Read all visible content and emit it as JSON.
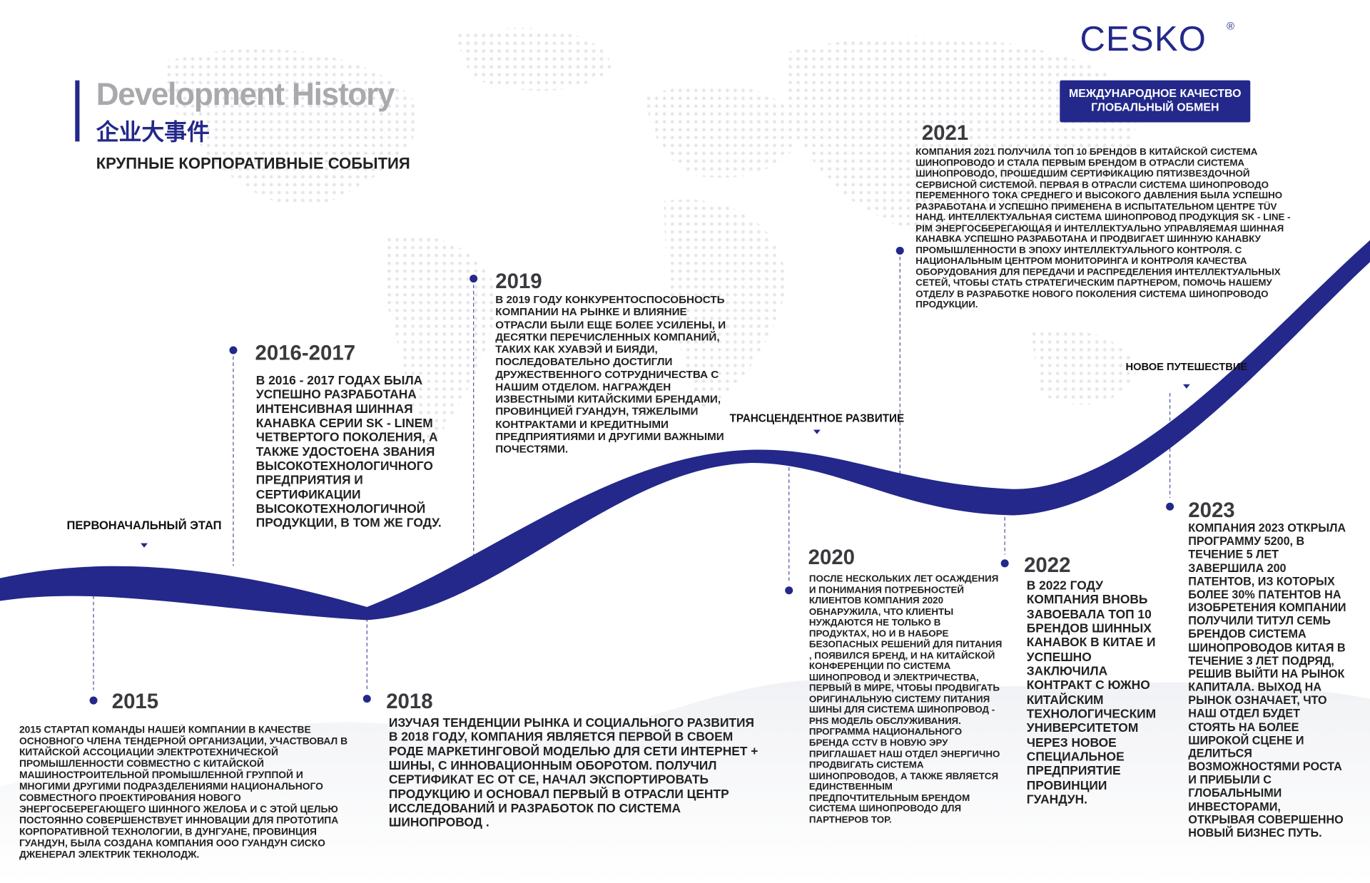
{
  "header": {
    "brand": "CESKO",
    "brand_mark": "®",
    "title": "Development History",
    "title_cn": "企业大事件",
    "subtitle": "КРУПНЫЕ КОРПОРАТИВНЫЕ СОБЫТИЯ",
    "badge": [
      "МЕЖДУНАРОДНОЕ КАЧЕСТВО",
      "ГЛОБАЛЬНЫЙ ОБМЕН"
    ]
  },
  "stages": [
    "ПЕРВОНАЧАЛЬНЫЙ ЭТАП",
    "ТРАНСЦЕНДЕНТНОЕ РАЗВИТИЕ",
    "НОВОЕ ПУТЕШЕСТВИЕ"
  ],
  "events": [
    {
      "year": "2015",
      "text": "2015 СТАРТАП КОМАНДЫ НАШЕЙ КОМПАНИИ В КАЧЕСТВЕ ОСНОВНОГО ЧЛЕНА ТЕНДЕРНОЙ ОРГАНИЗАЦИИ, УЧАСТВОВАЛ В КИТАЙСКОЙ АССОЦИАЦИИ ЭЛЕКТРОТЕХНИЧЕСКОЙ ПРОМЫШЛЕННОСТИ СОВМЕСТНО С КИТАЙСКОЙ МАШИНОСТРОИТЕЛЬНОЙ ПРОМЫШЛЕННОЙ ГРУППОЙ И МНОГИМИ ДРУГИМИ ПОДРАЗДЕЛЕНИЯМИ НАЦИОНАЛЬНОГО СОВМЕСТНОГО ПРОЕКТИРОВАНИЯ НОВОГО ЭНЕРГОСБЕРЕГАЮЩЕГО ШИННОГО ЖЕЛОБА И С ЭТОЙ ЦЕЛЬЮ ПОСТОЯННО СОВЕРШЕНСТВУЕТ ИННОВАЦИИ ДЛЯ ПРОТОТИПА КОРПОРАТИВНОЙ ТЕХНОЛОГИИ, В ДУНГУАНЕ, ПРОВИНЦИЯ ГУАНДУН, БЫЛА СОЗДАНА КОМПАНИЯ ООО ГУАНДУН СИСКО ДЖЕНЕРАЛ ЭЛЕКТРИК ТЕКНОЛОДЖ."
    },
    {
      "year": "2016-2017",
      "text": "В 2016 - 2017 ГОДАХ БЫЛА УСПЕШНО РАЗРАБОТАНА ИНТЕНСИВНАЯ ШИННАЯ КАНАВКА СЕРИИ SK - LINEM ЧЕТВЕРТОГО ПОКОЛЕНИЯ, А ТАКЖЕ УДОСТОЕНА ЗВАНИЯ ВЫСОКОТЕХНОЛОГИЧНОГО ПРЕДПРИЯТИЯ И СЕРТИФИКАЦИИ ВЫСОКОТЕХНОЛОГИЧНОЙ ПРОДУКЦИИ, В ТОМ ЖЕ ГОДУ."
    },
    {
      "year": "2018",
      "text": "ИЗУЧАЯ ТЕНДЕНЦИИ РЫНКА И СОЦИАЛЬНОГО РАЗВИТИЯ В 2018 ГОДУ, КОМПАНИЯ ЯВЛЯЕТСЯ ПЕРВОЙ В СВОЕМ РОДЕ МАРКЕТИНГОВОЙ МОДЕЛЬЮ ДЛЯ СЕТИ ИНТЕРНЕТ + ШИНЫ, С ИННОВАЦИОННЫМ ОБОРОТОМ. ПОЛУЧИЛ СЕРТИФИКАТ ЕС ОТ CE, НАЧАЛ ЭКСПОРТИРОВАТЬ ПРОДУКЦИЮ И ОСНОВАЛ ПЕРВЫЙ В ОТРАСЛИ ЦЕНТР ИССЛЕДОВАНИЙ И РАЗРАБОТОК ПО СИСТЕМА ШИНОПРОВОД ."
    },
    {
      "year": "2019",
      "text": "В 2019 ГОДУ КОНКУРЕНТОСПОСОБНОСТЬ КОМПАНИИ НА РЫНКЕ И ВЛИЯНИЕ ОТРАСЛИ БЫЛИ ЕЩЕ БОЛЕЕ УСИЛЕНЫ, И ДЕСЯТКИ ПЕРЕЧИСЛЕННЫХ КОМПАНИЙ, ТАКИХ КАК ХУАВЭЙ И БИЯДИ, ПОСЛЕДОВАТЕЛЬНО ДОСТИГЛИ ДРУЖЕСТВЕННОГО СОТРУДНИЧЕСТВА С НАШИМ ОТДЕЛОМ. НАГРАЖДЕН ИЗВЕСТНЫМИ КИТАЙСКИМИ БРЕНДАМИ, ПРОВИНЦИЕЙ ГУАНДУН, ТЯЖЕЛЫМИ КОНТРАКТАМИ И КРЕДИТНЫМИ ПРЕДПРИЯТИЯМИ И ДРУГИМИ ВАЖНЫМИ ПОЧЕСТЯМИ."
    },
    {
      "year": "2020",
      "text": "ПОСЛЕ НЕСКОЛЬКИХ ЛЕТ ОСАЖДЕНИЯ И ПОНИМАНИЯ ПОТРЕБНОСТЕЙ КЛИЕНТОВ КОМПАНИЯ 2020 ОБНАРУЖИЛА, ЧТО КЛИЕНТЫ НУЖДАЮТСЯ НЕ ТОЛЬКО В ПРОДУКТАХ, НО И В НАБОРЕ БЕЗОПАСНЫХ РЕШЕНИЙ ДЛЯ ПИТАНИЯ , ПОЯВИЛСЯ БРЕНД, И НА КИТАЙСКОЙ КОНФЕРЕНЦИИ ПО СИСТЕМА ШИНОПРОВОД И ЭЛЕКТРИЧЕСТВА, ПЕРВЫЙ В МИРЕ, ЧТОБЫ ПРОДВИГАТЬ ОРИГИНАЛЬНУЮ СИСТЕМУ ПИТАНИЯ ШИНЫ ДЛЯ СИСТЕМА ШИНОПРОВОД - PHS МОДЕЛЬ ОБСЛУЖИВАНИЯ. ПРОГРАММА НАЦИОНАЛЬНОГО БРЕНДА CCTV В НОВУЮ ЭРУ ПРИГЛАШАЕТ НАШ ОТДЕЛ ЭНЕРГИЧНО ПРОДВИГАТЬ СИСТЕМА ШИНОПРОВОДОВ, А ТАКЖЕ ЯВЛЯЕТСЯ ЕДИНСТВЕННЫМ ПРЕДПОЧТИТЕЛЬНЫМ БРЕНДОМ СИСТЕМА ШИНОПРОВОДО ДЛЯ ПАРТНЕРОВ ТОР."
    },
    {
      "year": "2021",
      "text": "КОМПАНИЯ 2021 ПОЛУЧИЛА ТОП 10 БРЕНДОВ В КИТАЙСКОЙ СИСТЕМА ШИНОПРОВОДО И СТАЛА ПЕРВЫМ БРЕНДОМ В ОТРАСЛИ СИСТЕМА ШИНОПРОВОДО, ПРОШЕДШИМ СЕРТИФИКАЦИЮ ПЯТИЗВЕЗДОЧНОЙ СЕРВИСНОЙ СИСТЕМОЙ. ПЕРВАЯ В ОТРАСЛИ СИСТЕМА ШИНОПРОВОДО ПЕРЕМЕННОГО ТОКА СРЕДНЕГО И ВЫСОКОГО ДАВЛЕНИЯ БЫЛА УСПЕШНО РАЗРАБОТАНА И УСПЕШНО ПРИМЕНЕНА В ИСПЫТАТЕЛЬНОМ ЦЕНТРЕ TÜV НАНД. ИНТЕЛЛЕКТУАЛЬНАЯ СИСТЕМА ШИНОПРОВОД ПРОДУКЦИЯ SK - LINE - PIM ЭНЕРГОСБЕРЕГАЮЩАЯ И ИНТЕЛЛЕКТУАЛЬНО УПРАВЛЯЕМАЯ ШИННАЯ КАНАВКА УСПЕШНО РАЗРАБОТАНА И ПРОДВИГАЕТ ШИННУЮ КАНАВКУ ПРОМЫШЛЕННОСТИ В ЭПОХУ ИНТЕЛЛЕКТУАЛЬНОГО КОНТРОЛЯ. С НАЦИОНАЛЬНЫМ ЦЕНТРОМ МОНИТОРИНГА И КОНТРОЛЯ КАЧЕСТВА ОБОРУДОВАНИЯ ДЛЯ ПЕРЕДАЧИ И РАСПРЕДЕЛЕНИЯ ИНТЕЛЛЕКТУАЛЬНЫХ СЕТЕЙ, ЧТОБЫ СТАТЬ СТРАТЕГИЧЕСКИМ ПАРТНЕРОМ, ПОМОЧЬ НАШЕМУ ОТДЕЛУ В РАЗРАБОТКЕ НОВОГО ПОКОЛЕНИЯ СИСТЕМА ШИНОПРОВОДО ПРОДУКЦИИ."
    },
    {
      "year": "2022",
      "text": "В 2022 ГОДУ КОМПАНИЯ ВНОВЬ ЗАВОЕВАЛА ТОП 10 БРЕНДОВ ШИННЫХ КАНАВОК В КИТАЕ И УСПЕШНО ЗАКЛЮЧИЛА КОНТРАКТ С ЮЖНО КИТАЙСКИМ ТЕХНОЛОГИЧЕСКИМ УНИВЕРСИТЕТОМ ЧЕРЕЗ НОВОЕ СПЕЦИАЛЬНОЕ ПРЕДПРИЯТИЕ ПРОВИНЦИИ ГУАНДУН."
    },
    {
      "year": "2023",
      "text": "КОМПАНИЯ 2023 ОТКРЫЛА ПРОГРАММУ 5200, В ТЕЧЕНИЕ 5 ЛЕТ ЗАВЕРШИЛА 200 ПАТЕНТОВ, ИЗ КОТОРЫХ БОЛЕЕ 30% ПАТЕНТОВ НА ИЗОБРЕТЕНИЯ КОМПАНИИ ПОЛУЧИЛИ ТИТУЛ СЕМЬ БРЕНДОВ СИСТЕМА ШИНОПРОВОДОВ КИТАЯ В ТЕЧЕНИЕ 3 ЛЕТ ПОДРЯД, РЕШИВ ВЫЙТИ НА РЫНОК КАПИТАЛА. ВЫХОД НА РЫНОК ОЗНАЧАЕТ, ЧТО НАШ ОТДЕЛ БУДЕТ СТОЯТЬ НА БОЛЕЕ ШИРОКОЙ СЦЕНЕ И ДЕЛИТЬСЯ ВОЗМОЖНОСТЯМИ РОСТА И ПРИБЫЛИ С ГЛОБАЛЬНЫМИ ИНВЕСТОРАМИ, ОТКРЫВАЯ СОВЕРШЕННО НОВЫЙ БИЗНЕС ПУТЬ."
    }
  ]
}
